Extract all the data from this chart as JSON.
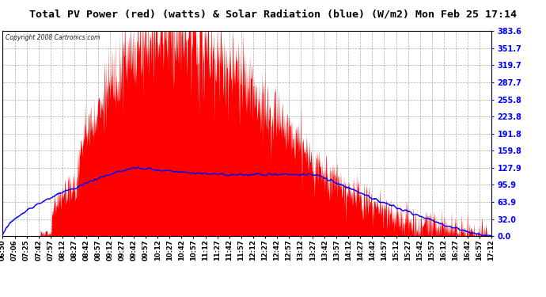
{
  "title": "Total PV Power (red) (watts) & Solar Radiation (blue) (W/m2) Mon Feb 25 17:14",
  "copyright": "Copyright 2008 Cartronics.com",
  "yticks": [
    0.0,
    32.0,
    63.9,
    95.9,
    127.9,
    159.8,
    191.8,
    223.8,
    255.8,
    287.7,
    319.7,
    351.7,
    383.6
  ],
  "ymax": 383.6,
  "ymin": 0.0,
  "xtick_labels": [
    "06:50",
    "07:06",
    "07:25",
    "07:42",
    "07:57",
    "08:12",
    "08:27",
    "08:42",
    "08:57",
    "09:12",
    "09:27",
    "09:42",
    "09:57",
    "10:12",
    "10:27",
    "10:42",
    "10:57",
    "11:12",
    "11:27",
    "11:42",
    "11:57",
    "12:12",
    "12:27",
    "12:42",
    "12:57",
    "13:12",
    "13:27",
    "13:42",
    "13:57",
    "14:12",
    "14:27",
    "14:42",
    "14:57",
    "15:12",
    "15:27",
    "15:42",
    "15:57",
    "16:12",
    "16:27",
    "16:42",
    "16:57",
    "17:12"
  ],
  "bg_color": "#ffffff",
  "plot_bg_color": "#ffffff",
  "grid_color": "#aaaaaa",
  "red_color": "#ff0000",
  "blue_color": "#0000ff",
  "title_bg_color": "#d4d4d4"
}
